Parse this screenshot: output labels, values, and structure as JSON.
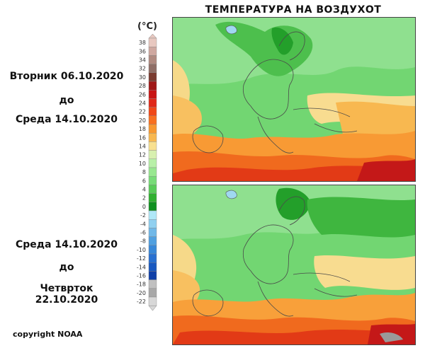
{
  "title": "ТЕМПЕРАТУРА НА ВОЗДУХОТ",
  "periods": [
    {
      "from": "Вторник 06.10.2020",
      "connector": "до",
      "to": "Среда 14.10.2020"
    },
    {
      "from": "Среда 14.10.2020",
      "connector": "до",
      "to": "Четврток 22.10.2020"
    }
  ],
  "legend": {
    "unit": "(°C)",
    "bins": [
      {
        "label": "38",
        "color": "#e8c8c0"
      },
      {
        "label": "36",
        "color": "#cfa8a0"
      },
      {
        "label": "34",
        "color": "#b08a80"
      },
      {
        "label": "32",
        "color": "#8f6e66"
      },
      {
        "label": "30",
        "color": "#7a3b30"
      },
      {
        "label": "28",
        "color": "#a01818"
      },
      {
        "label": "26",
        "color": "#c81414"
      },
      {
        "label": "24",
        "color": "#e02818"
      },
      {
        "label": "22",
        "color": "#f04818"
      },
      {
        "label": "20",
        "color": "#f87020"
      },
      {
        "label": "18",
        "color": "#f89830"
      },
      {
        "label": "16",
        "color": "#f8b850"
      },
      {
        "label": "14",
        "color": "#f8e090"
      },
      {
        "label": "12",
        "color": "#d8f0b0"
      },
      {
        "label": "10",
        "color": "#b8f0a8"
      },
      {
        "label": "8",
        "color": "#98e890"
      },
      {
        "label": "6",
        "color": "#78dc78"
      },
      {
        "label": "4",
        "color": "#58cc58"
      },
      {
        "label": "2",
        "color": "#30b030"
      },
      {
        "label": "0",
        "color": "#109020"
      },
      {
        "label": "-2",
        "color": "#b0e8f8"
      },
      {
        "label": "-4",
        "color": "#90d0f0"
      },
      {
        "label": "-6",
        "color": "#70b8e8"
      },
      {
        "label": "-8",
        "color": "#50a0e0"
      },
      {
        "label": "-10",
        "color": "#3888d8"
      },
      {
        "label": "-12",
        "color": "#2870d0"
      },
      {
        "label": "-14",
        "color": "#1858c0"
      },
      {
        "label": "-16",
        "color": "#1040a8"
      },
      {
        "label": "-18",
        "color": "#c0c0c0"
      },
      {
        "label": "-20",
        "color": "#a8a8a8"
      },
      {
        "label": "-22",
        "color": "#d8d8d8"
      }
    ]
  },
  "copyright": "copyright NOAA"
}
